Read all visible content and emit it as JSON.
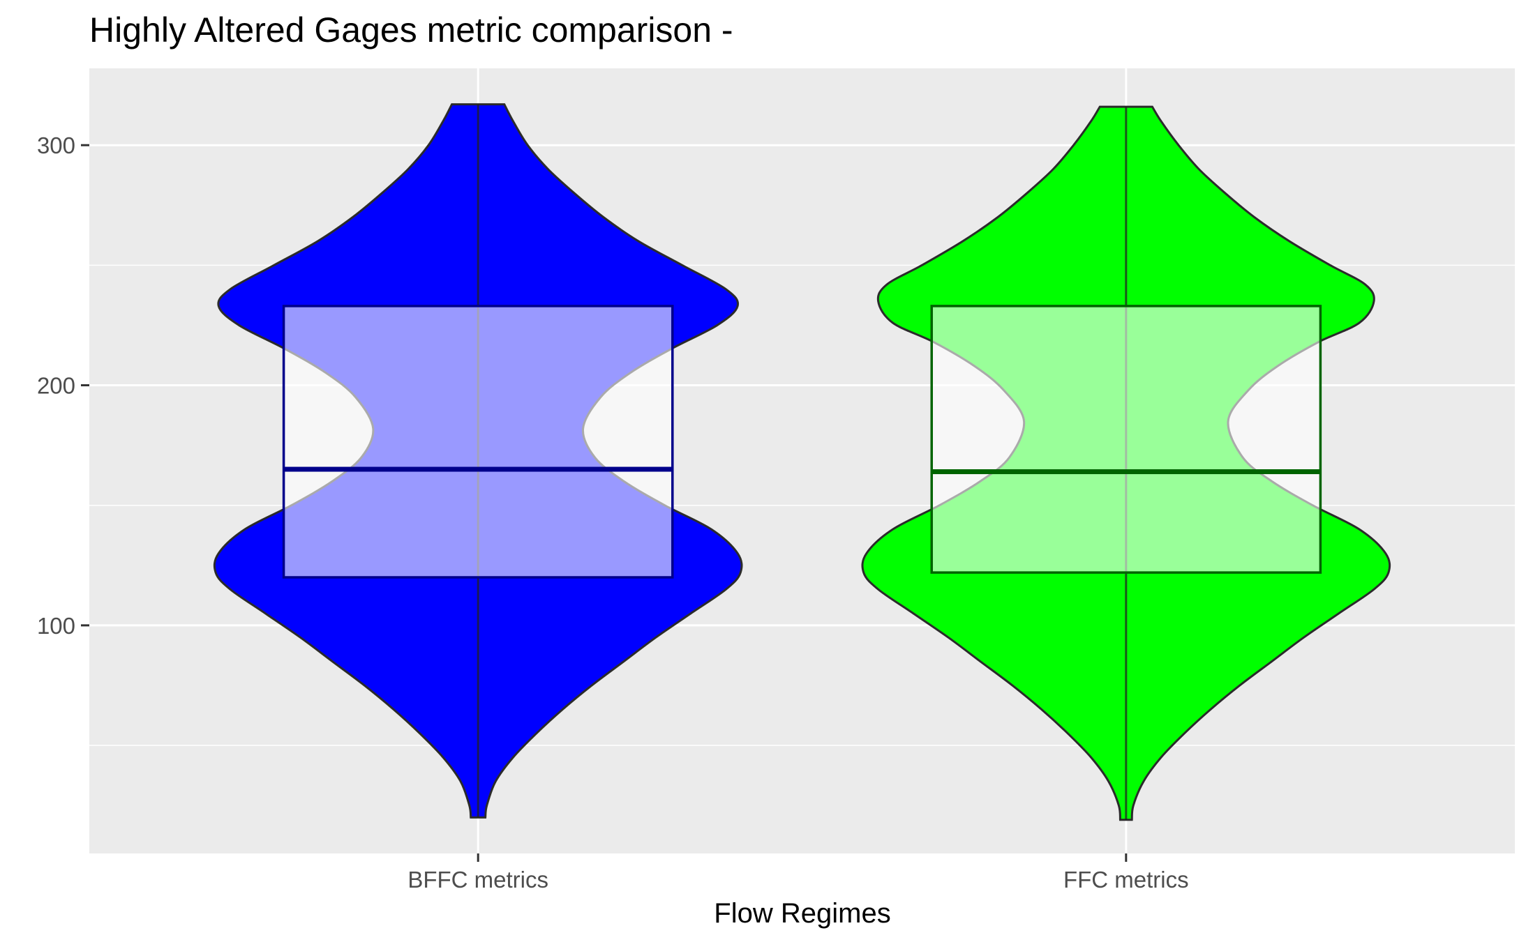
{
  "chart_data": {
    "type": "violin",
    "title": "Highly Altered Gages metric comparison -",
    "xlabel": "Flow Regimes",
    "ylabel": "",
    "categories": [
      "BFFC metrics",
      "FFC metrics"
    ],
    "ylim": [
      5,
      332
    ],
    "yticks": [
      100,
      200,
      300
    ],
    "grid": true,
    "legend": "none",
    "series": [
      {
        "category": "BFFC metrics",
        "fill": "#0000FF",
        "box_fill": "#9B9BFF",
        "box_line": "#00008B",
        "min": 20,
        "q1": 120,
        "median": 165,
        "q3": 233,
        "max": 317,
        "density_half_widths": [
          [
            20,
            0.025
          ],
          [
            25,
            0.03
          ],
          [
            35,
            0.06
          ],
          [
            45,
            0.12
          ],
          [
            55,
            0.2
          ],
          [
            65,
            0.29
          ],
          [
            75,
            0.39
          ],
          [
            85,
            0.5
          ],
          [
            95,
            0.61
          ],
          [
            105,
            0.73
          ],
          [
            115,
            0.85
          ],
          [
            122,
            0.9
          ],
          [
            130,
            0.89
          ],
          [
            140,
            0.8
          ],
          [
            150,
            0.64
          ],
          [
            160,
            0.5
          ],
          [
            170,
            0.4
          ],
          [
            182,
            0.36
          ],
          [
            195,
            0.42
          ],
          [
            205,
            0.52
          ],
          [
            215,
            0.66
          ],
          [
            225,
            0.82
          ],
          [
            233,
            0.89
          ],
          [
            240,
            0.85
          ],
          [
            250,
            0.7
          ],
          [
            260,
            0.55
          ],
          [
            270,
            0.43
          ],
          [
            280,
            0.33
          ],
          [
            290,
            0.24
          ],
          [
            300,
            0.17
          ],
          [
            310,
            0.12
          ],
          [
            317,
            0.09
          ]
        ]
      },
      {
        "category": "FFC metrics",
        "fill": "#00FF00",
        "box_fill": "#9BFF9B",
        "box_line": "#006400",
        "min": 19,
        "q1": 122,
        "median": 164,
        "q3": 233,
        "max": 316,
        "density_half_widths": [
          [
            19,
            0.02
          ],
          [
            25,
            0.025
          ],
          [
            35,
            0.06
          ],
          [
            45,
            0.12
          ],
          [
            55,
            0.2
          ],
          [
            65,
            0.29
          ],
          [
            75,
            0.39
          ],
          [
            85,
            0.5
          ],
          [
            95,
            0.61
          ],
          [
            105,
            0.73
          ],
          [
            115,
            0.85
          ],
          [
            122,
            0.9
          ],
          [
            130,
            0.89
          ],
          [
            140,
            0.8
          ],
          [
            150,
            0.64
          ],
          [
            160,
            0.5
          ],
          [
            170,
            0.4
          ],
          [
            185,
            0.35
          ],
          [
            198,
            0.42
          ],
          [
            208,
            0.52
          ],
          [
            218,
            0.66
          ],
          [
            226,
            0.8
          ],
          [
            235,
            0.85
          ],
          [
            242,
            0.82
          ],
          [
            250,
            0.7
          ],
          [
            260,
            0.56
          ],
          [
            270,
            0.44
          ],
          [
            280,
            0.34
          ],
          [
            290,
            0.25
          ],
          [
            300,
            0.18
          ],
          [
            310,
            0.12
          ],
          [
            316,
            0.09
          ]
        ]
      }
    ]
  }
}
